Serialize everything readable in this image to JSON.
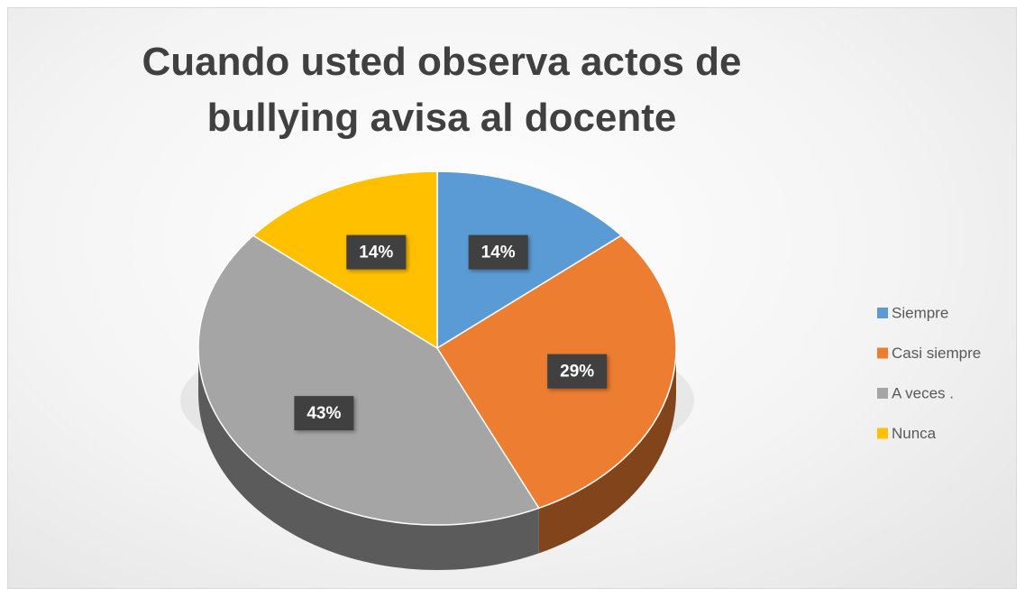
{
  "chart_data": {
    "type": "pie",
    "title": "Cuando usted  observa actos de bullying avisa al docente",
    "categories": [
      "Siempre",
      "Casi siempre",
      "A veces .",
      "Nunca"
    ],
    "values": [
      14,
      29,
      43,
      14
    ],
    "value_labels": [
      "14%",
      "29%",
      "43%",
      "14%"
    ],
    "colors": [
      "#5b9bd5",
      "#ed7d31",
      "#a5a5a5",
      "#ffc000"
    ],
    "legend": "right"
  }
}
